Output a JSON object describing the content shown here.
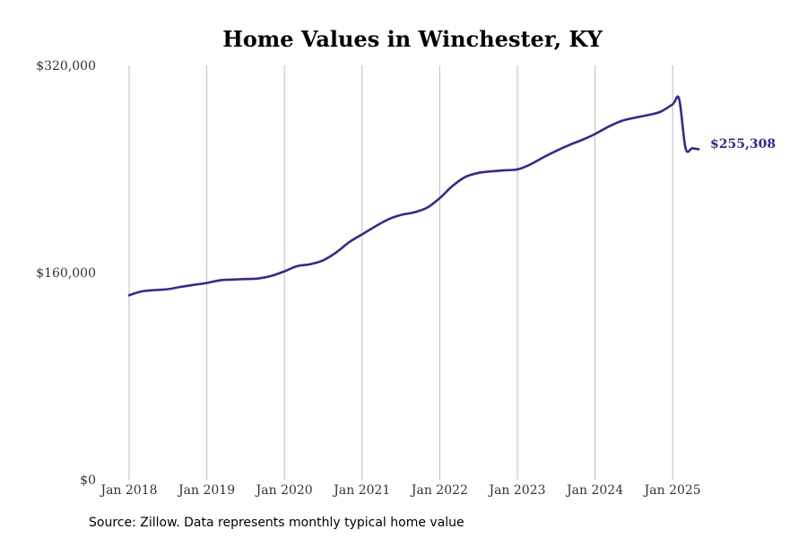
{
  "colors": {
    "series": "#352a87",
    "grid": "#bdbdbd",
    "title": "#000000",
    "tick_text": "#333333"
  },
  "chart_data": {
    "type": "line",
    "title": "Home Values in Winchester, KY",
    "xlabel": "",
    "ylabel": "",
    "grid": "vertical",
    "x_tick_labels": [
      "Jan 2018",
      "Jan 2019",
      "Jan 2020",
      "Jan 2021",
      "Jan 2022",
      "Jan 2023",
      "Jan 2024",
      "Jan 2025"
    ],
    "y_tick_labels": [
      "$0",
      "$160,000",
      "$320,000"
    ],
    "y_ticks": [
      0,
      160000,
      320000
    ],
    "ylim": [
      0,
      320000
    ],
    "xlim": [
      "2017-09",
      "2025-12"
    ],
    "end_label": "$255,308",
    "series": [
      {
        "x": [
          "2018-01",
          "2018-03",
          "2018-05",
          "2018-07",
          "2018-09",
          "2018-11",
          "2019-01",
          "2019-03",
          "2019-05",
          "2019-07",
          "2019-09",
          "2019-11",
          "2020-01",
          "2020-03",
          "2020-05",
          "2020-07",
          "2020-09",
          "2020-11",
          "2021-01",
          "2021-03",
          "2021-05",
          "2021-07",
          "2021-09",
          "2021-11",
          "2022-01",
          "2022-03",
          "2022-05",
          "2022-07",
          "2022-09",
          "2022-11",
          "2023-01",
          "2023-03",
          "2023-05",
          "2023-07",
          "2023-09",
          "2023-11",
          "2024-01",
          "2024-03",
          "2024-05",
          "2024-07",
          "2024-09",
          "2024-11",
          "2025-01",
          "2025-02",
          "2025-03",
          "2025-04",
          "2025-05"
        ],
        "values": [
          142500,
          145500,
          146500,
          147200,
          149000,
          150500,
          152000,
          154000,
          154600,
          155000,
          155400,
          157500,
          161000,
          165000,
          166500,
          169500,
          175500,
          183500,
          189500,
          195500,
          201000,
          204500,
          206500,
          210000,
          217500,
          227000,
          234000,
          237000,
          238200,
          239000,
          239700,
          243500,
          249000,
          254000,
          258500,
          262500,
          267000,
          272500,
          277000,
          279500,
          281500,
          284000,
          290000,
          294000,
          256000,
          256000,
          255308
        ]
      }
    ]
  },
  "footer": {
    "source": "Source: Zillow. Data represents monthly typical home value"
  }
}
